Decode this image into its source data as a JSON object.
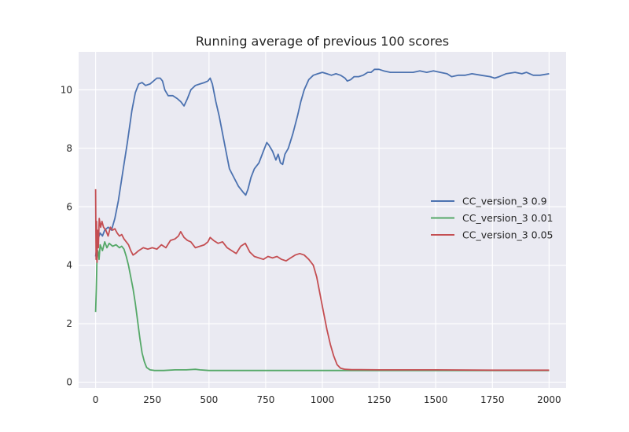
{
  "chart_data": {
    "type": "line",
    "title": "Running average of previous 100 scores",
    "xlabel": "",
    "ylabel": "",
    "xlim": [
      -75,
      2075
    ],
    "ylim": [
      -0.2,
      11.3
    ],
    "xticks": [
      0,
      250,
      500,
      750,
      1000,
      1250,
      1500,
      1750,
      2000
    ],
    "yticks": [
      0,
      2,
      4,
      6,
      8,
      10
    ],
    "grid": true,
    "legend_position": "center-right",
    "colors": {
      "background": "#EAEAF2",
      "grid": "#FFFFFF"
    },
    "series": [
      {
        "name": "CC_version_3 0.9",
        "color": "#4C72B0",
        "points": [
          [
            0,
            4.3
          ],
          [
            10,
            4.9
          ],
          [
            20,
            5.1
          ],
          [
            30,
            5.0
          ],
          [
            40,
            5.2
          ],
          [
            55,
            5.3
          ],
          [
            70,
            5.2
          ],
          [
            85,
            5.6
          ],
          [
            100,
            6.2
          ],
          [
            120,
            7.2
          ],
          [
            140,
            8.2
          ],
          [
            160,
            9.3
          ],
          [
            175,
            9.9
          ],
          [
            190,
            10.2
          ],
          [
            205,
            10.25
          ],
          [
            220,
            10.15
          ],
          [
            240,
            10.2
          ],
          [
            255,
            10.3
          ],
          [
            270,
            10.4
          ],
          [
            285,
            10.4
          ],
          [
            295,
            10.3
          ],
          [
            305,
            10.0
          ],
          [
            320,
            9.8
          ],
          [
            340,
            9.8
          ],
          [
            360,
            9.7
          ],
          [
            375,
            9.6
          ],
          [
            390,
            9.45
          ],
          [
            405,
            9.7
          ],
          [
            420,
            10.0
          ],
          [
            440,
            10.15
          ],
          [
            460,
            10.2
          ],
          [
            480,
            10.25
          ],
          [
            495,
            10.3
          ],
          [
            505,
            10.4
          ],
          [
            515,
            10.2
          ],
          [
            530,
            9.6
          ],
          [
            545,
            9.1
          ],
          [
            560,
            8.5
          ],
          [
            575,
            7.9
          ],
          [
            590,
            7.3
          ],
          [
            610,
            7.0
          ],
          [
            630,
            6.7
          ],
          [
            650,
            6.5
          ],
          [
            662,
            6.4
          ],
          [
            672,
            6.6
          ],
          [
            685,
            7.0
          ],
          [
            700,
            7.3
          ],
          [
            720,
            7.5
          ],
          [
            740,
            7.9
          ],
          [
            755,
            8.2
          ],
          [
            765,
            8.1
          ],
          [
            780,
            7.9
          ],
          [
            795,
            7.6
          ],
          [
            805,
            7.8
          ],
          [
            815,
            7.5
          ],
          [
            825,
            7.45
          ],
          [
            835,
            7.8
          ],
          [
            850,
            8.0
          ],
          [
            870,
            8.5
          ],
          [
            890,
            9.1
          ],
          [
            905,
            9.6
          ],
          [
            920,
            10.0
          ],
          [
            940,
            10.35
          ],
          [
            960,
            10.5
          ],
          [
            980,
            10.55
          ],
          [
            1000,
            10.6
          ],
          [
            1020,
            10.55
          ],
          [
            1040,
            10.5
          ],
          [
            1060,
            10.55
          ],
          [
            1080,
            10.5
          ],
          [
            1100,
            10.4
          ],
          [
            1110,
            10.3
          ],
          [
            1125,
            10.35
          ],
          [
            1140,
            10.45
          ],
          [
            1160,
            10.45
          ],
          [
            1180,
            10.5
          ],
          [
            1200,
            10.6
          ],
          [
            1215,
            10.6
          ],
          [
            1230,
            10.7
          ],
          [
            1250,
            10.7
          ],
          [
            1270,
            10.65
          ],
          [
            1300,
            10.6
          ],
          [
            1330,
            10.6
          ],
          [
            1360,
            10.6
          ],
          [
            1400,
            10.6
          ],
          [
            1430,
            10.65
          ],
          [
            1460,
            10.6
          ],
          [
            1490,
            10.65
          ],
          [
            1520,
            10.6
          ],
          [
            1550,
            10.55
          ],
          [
            1570,
            10.45
          ],
          [
            1600,
            10.5
          ],
          [
            1630,
            10.5
          ],
          [
            1660,
            10.55
          ],
          [
            1700,
            10.5
          ],
          [
            1740,
            10.45
          ],
          [
            1760,
            10.4
          ],
          [
            1780,
            10.45
          ],
          [
            1810,
            10.55
          ],
          [
            1850,
            10.6
          ],
          [
            1880,
            10.55
          ],
          [
            1900,
            10.6
          ],
          [
            1930,
            10.5
          ],
          [
            1960,
            10.5
          ],
          [
            2000,
            10.55
          ]
        ]
      },
      {
        "name": "CC_version_3 0.01",
        "color": "#55A868",
        "points": [
          [
            0,
            2.4
          ],
          [
            3,
            3.2
          ],
          [
            6,
            4.3
          ],
          [
            10,
            4.5
          ],
          [
            15,
            4.2
          ],
          [
            20,
            4.7
          ],
          [
            30,
            4.5
          ],
          [
            40,
            4.8
          ],
          [
            50,
            4.6
          ],
          [
            60,
            4.75
          ],
          [
            75,
            4.65
          ],
          [
            90,
            4.7
          ],
          [
            105,
            4.6
          ],
          [
            115,
            4.65
          ],
          [
            125,
            4.55
          ],
          [
            135,
            4.3
          ],
          [
            145,
            4.0
          ],
          [
            155,
            3.6
          ],
          [
            165,
            3.2
          ],
          [
            175,
            2.7
          ],
          [
            185,
            2.1
          ],
          [
            195,
            1.5
          ],
          [
            205,
            1.0
          ],
          [
            215,
            0.7
          ],
          [
            225,
            0.5
          ],
          [
            240,
            0.42
          ],
          [
            260,
            0.4
          ],
          [
            300,
            0.4
          ],
          [
            350,
            0.42
          ],
          [
            400,
            0.42
          ],
          [
            440,
            0.44
          ],
          [
            460,
            0.42
          ],
          [
            500,
            0.4
          ],
          [
            700,
            0.4
          ],
          [
            1000,
            0.4
          ],
          [
            1250,
            0.4
          ],
          [
            1500,
            0.4
          ],
          [
            1750,
            0.4
          ],
          [
            2000,
            0.4
          ]
        ]
      },
      {
        "name": "CC_version_3 0.05",
        "color": "#C44E52",
        "points": [
          [
            0,
            6.6
          ],
          [
            2,
            4.2
          ],
          [
            4,
            5.5
          ],
          [
            6,
            4.1
          ],
          [
            8,
            5.2
          ],
          [
            12,
            4.6
          ],
          [
            16,
            5.6
          ],
          [
            22,
            5.3
          ],
          [
            28,
            5.5
          ],
          [
            35,
            5.3
          ],
          [
            45,
            5.2
          ],
          [
            55,
            5.0
          ],
          [
            65,
            5.3
          ],
          [
            75,
            5.2
          ],
          [
            85,
            5.25
          ],
          [
            95,
            5.1
          ],
          [
            105,
            5.0
          ],
          [
            115,
            5.05
          ],
          [
            125,
            4.9
          ],
          [
            135,
            4.8
          ],
          [
            145,
            4.7
          ],
          [
            155,
            4.5
          ],
          [
            165,
            4.35
          ],
          [
            175,
            4.4
          ],
          [
            190,
            4.5
          ],
          [
            210,
            4.6
          ],
          [
            230,
            4.55
          ],
          [
            250,
            4.6
          ],
          [
            270,
            4.55
          ],
          [
            290,
            4.7
          ],
          [
            310,
            4.6
          ],
          [
            330,
            4.85
          ],
          [
            350,
            4.9
          ],
          [
            365,
            5.0
          ],
          [
            375,
            5.15
          ],
          [
            390,
            4.95
          ],
          [
            405,
            4.85
          ],
          [
            420,
            4.8
          ],
          [
            440,
            4.6
          ],
          [
            460,
            4.65
          ],
          [
            480,
            4.7
          ],
          [
            495,
            4.8
          ],
          [
            505,
            4.95
          ],
          [
            520,
            4.85
          ],
          [
            540,
            4.75
          ],
          [
            560,
            4.8
          ],
          [
            580,
            4.6
          ],
          [
            600,
            4.5
          ],
          [
            620,
            4.4
          ],
          [
            640,
            4.65
          ],
          [
            660,
            4.75
          ],
          [
            680,
            4.45
          ],
          [
            700,
            4.3
          ],
          [
            720,
            4.25
          ],
          [
            740,
            4.2
          ],
          [
            760,
            4.3
          ],
          [
            780,
            4.25
          ],
          [
            800,
            4.3
          ],
          [
            820,
            4.2
          ],
          [
            840,
            4.15
          ],
          [
            860,
            4.25
          ],
          [
            880,
            4.35
          ],
          [
            900,
            4.4
          ],
          [
            920,
            4.35
          ],
          [
            940,
            4.2
          ],
          [
            960,
            4.0
          ],
          [
            975,
            3.6
          ],
          [
            990,
            3.0
          ],
          [
            1005,
            2.4
          ],
          [
            1020,
            1.8
          ],
          [
            1035,
            1.3
          ],
          [
            1050,
            0.9
          ],
          [
            1065,
            0.6
          ],
          [
            1080,
            0.48
          ],
          [
            1100,
            0.44
          ],
          [
            1130,
            0.43
          ],
          [
            1170,
            0.43
          ],
          [
            1250,
            0.42
          ],
          [
            1500,
            0.42
          ],
          [
            1750,
            0.41
          ],
          [
            2000,
            0.41
          ]
        ]
      }
    ]
  }
}
